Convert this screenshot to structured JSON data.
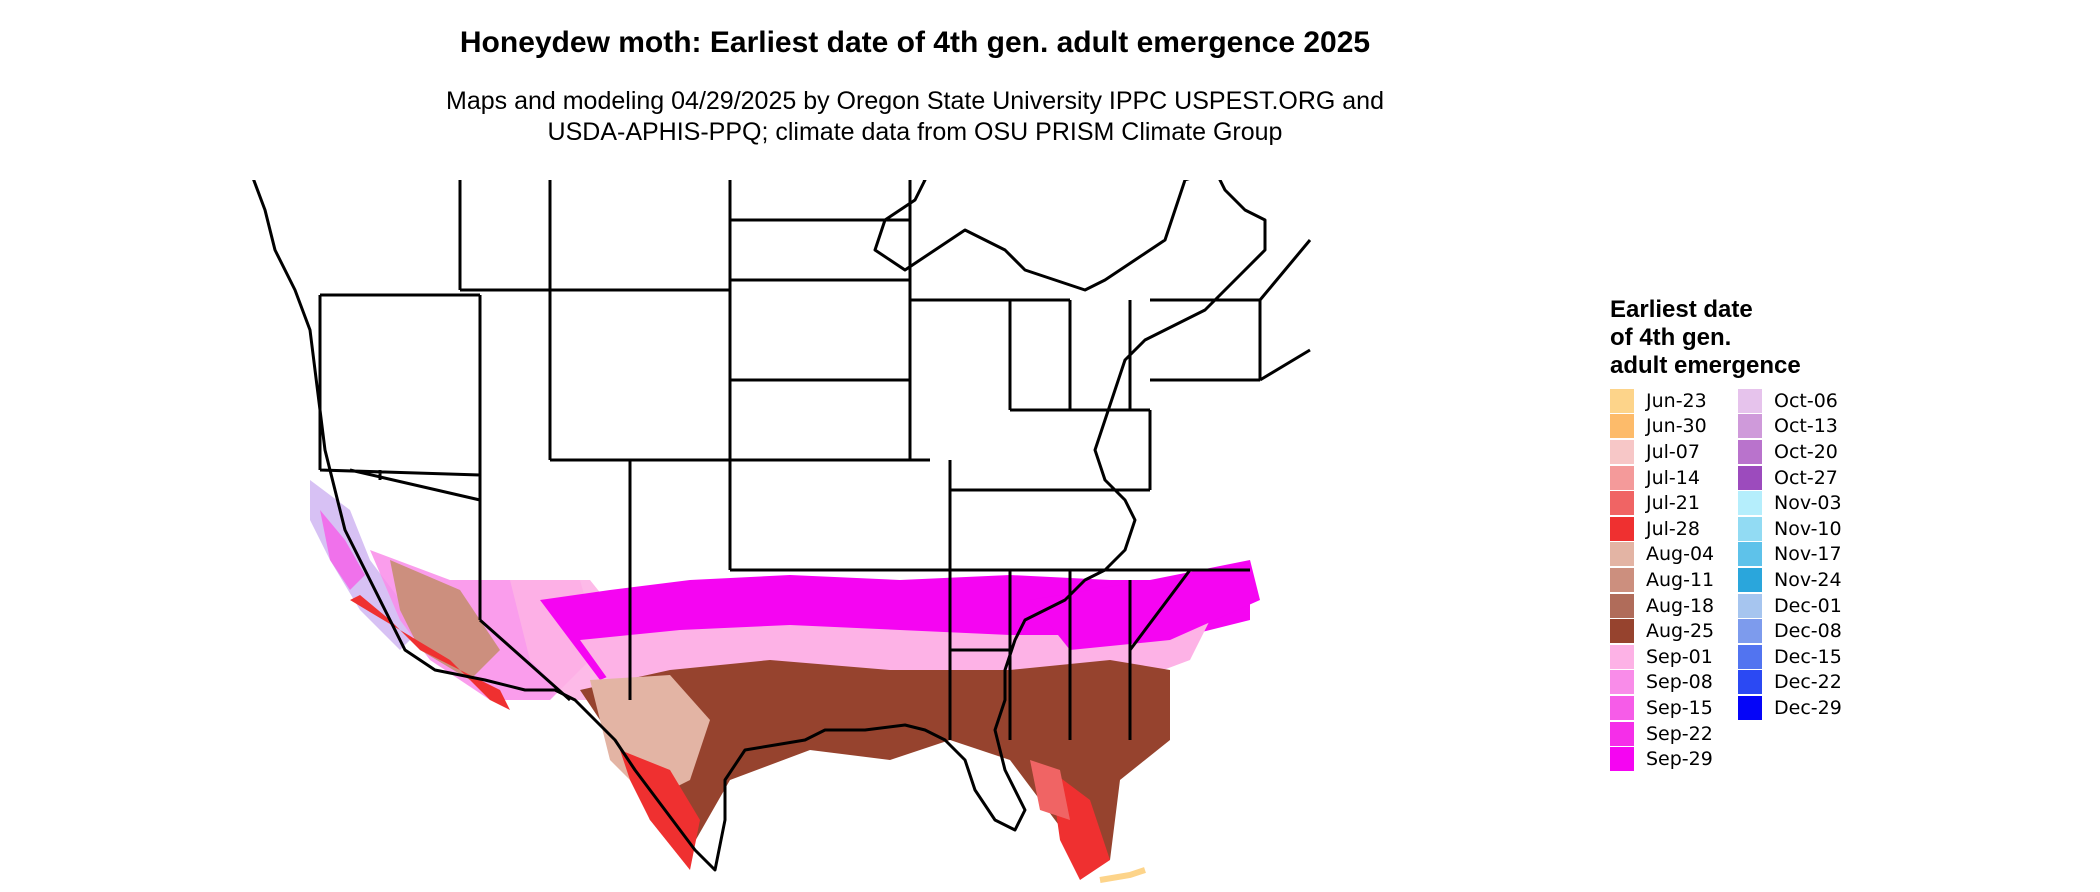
{
  "title": "Honeydew moth: Earliest date of 4th gen. adult emergence 2025",
  "subtitle": {
    "line1": "Maps and modeling 04/29/2025 by Oregon State University IPPC USPEST.ORG and",
    "line2": "USDA-APHIS-PPQ; climate data from OSU PRISM Climate Group"
  },
  "legend": {
    "title_lines": [
      "Earliest date",
      "of 4th gen.",
      "adult emergence"
    ],
    "items": [
      {
        "label": "Jun-23",
        "color": "#fdd48a"
      },
      {
        "label": "Jun-30",
        "color": "#fdbb6a"
      },
      {
        "label": "Jul-07",
        "color": "#f7c7c7"
      },
      {
        "label": "Jul-14",
        "color": "#f49a9a"
      },
      {
        "label": "Jul-21",
        "color": "#f06464"
      },
      {
        "label": "Jul-28",
        "color": "#ef3030"
      },
      {
        "label": "Aug-04",
        "color": "#e3b4a4"
      },
      {
        "label": "Aug-11",
        "color": "#cc8f7e"
      },
      {
        "label": "Aug-18",
        "color": "#b06c5a"
      },
      {
        "label": "Aug-25",
        "color": "#96432e"
      },
      {
        "label": "Sep-01",
        "color": "#fdb2e6"
      },
      {
        "label": "Sep-08",
        "color": "#f98ce9"
      },
      {
        "label": "Sep-15",
        "color": "#f65ce8"
      },
      {
        "label": "Sep-22",
        "color": "#f52ee9"
      },
      {
        "label": "Sep-29",
        "color": "#f505f2"
      },
      {
        "label": "Oct-06",
        "color": "#e6c3ec"
      },
      {
        "label": "Oct-13",
        "color": "#cf9ada"
      },
      {
        "label": "Oct-20",
        "color": "#b973cc"
      },
      {
        "label": "Oct-27",
        "color": "#9c4bbd"
      },
      {
        "label": "Nov-03",
        "color": "#b5eefc"
      },
      {
        "label": "Nov-10",
        "color": "#92dbf3"
      },
      {
        "label": "Nov-17",
        "color": "#5ec2ea"
      },
      {
        "label": "Nov-24",
        "color": "#2aa6dc"
      },
      {
        "label": "Dec-01",
        "color": "#a6c5ef"
      },
      {
        "label": "Dec-08",
        "color": "#7d9bed"
      },
      {
        "label": "Dec-15",
        "color": "#5274f0"
      },
      {
        "label": "Dec-22",
        "color": "#2b49f3"
      },
      {
        "label": "Dec-29",
        "color": "#0505f8"
      }
    ]
  }
}
